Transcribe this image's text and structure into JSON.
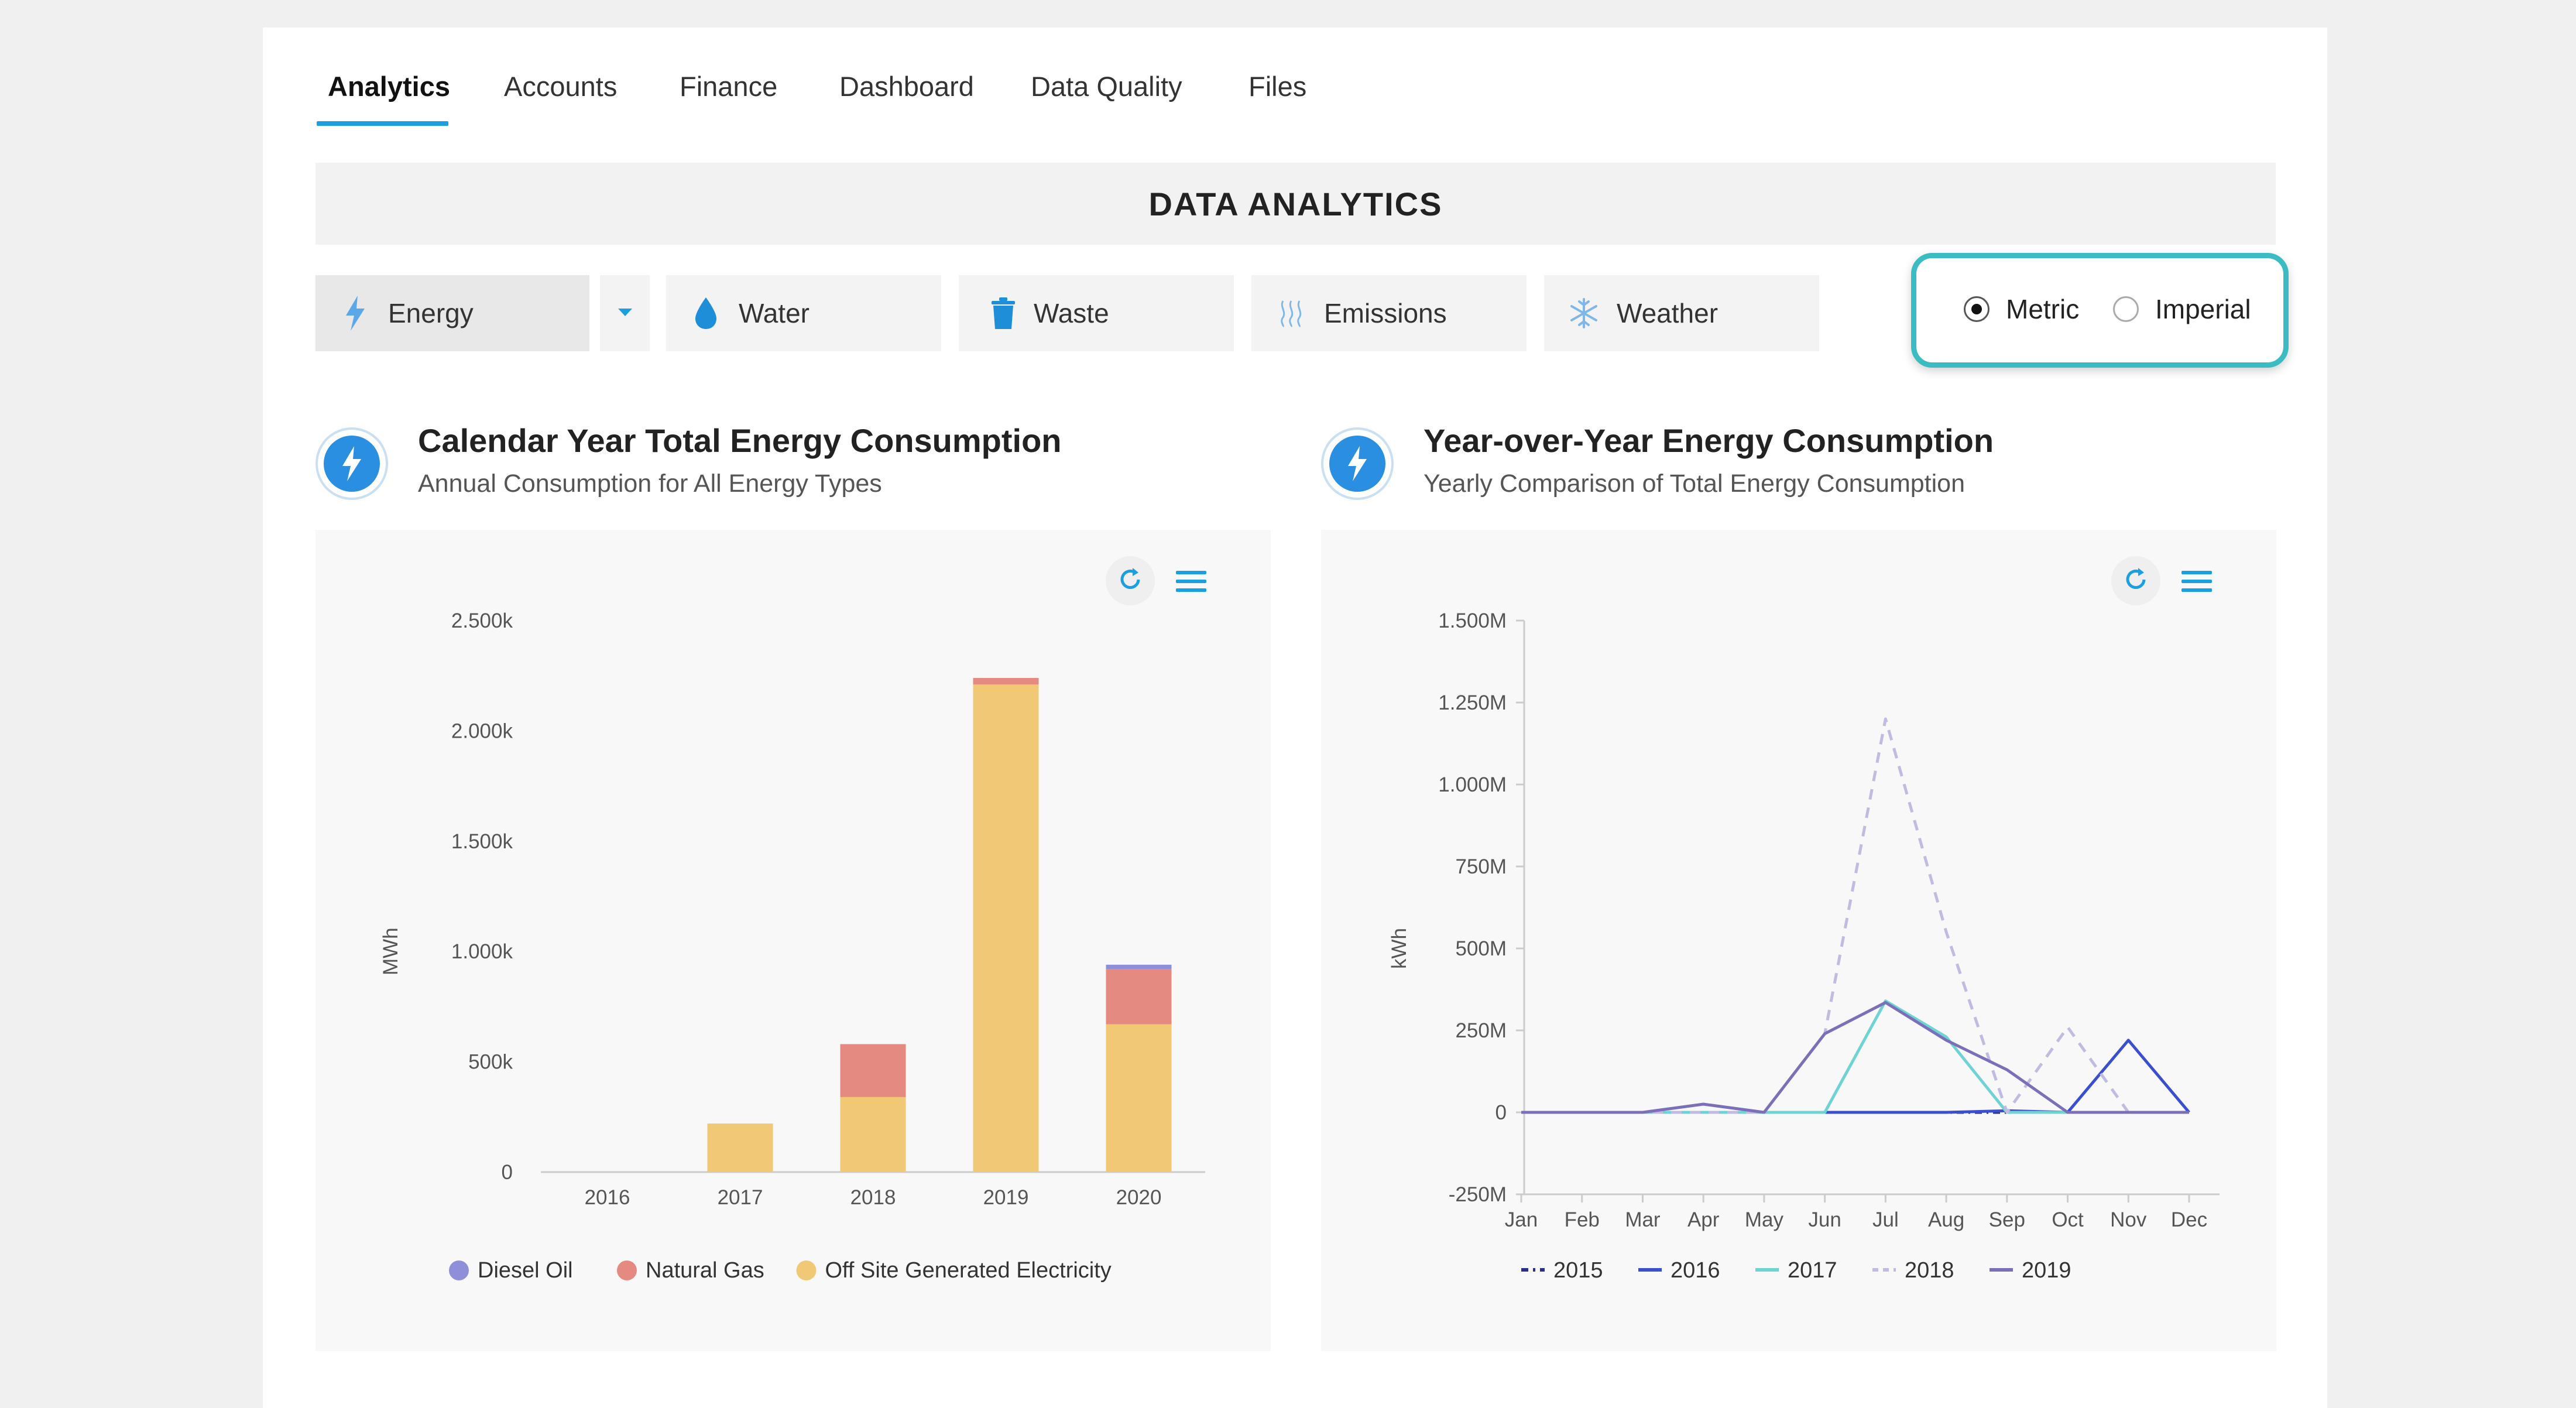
{
  "tabs": [
    {
      "label": "Analytics",
      "active": true
    },
    {
      "label": "Accounts"
    },
    {
      "label": "Finance"
    },
    {
      "label": "Dashboard"
    },
    {
      "label": "Data Quality"
    },
    {
      "label": "Files"
    }
  ],
  "header": {
    "title": "DATA ANALYTICS"
  },
  "categories": [
    {
      "label": "Energy",
      "icon": "lightning-icon",
      "active": true
    },
    {
      "label": "Water",
      "icon": "water-drop-icon"
    },
    {
      "label": "Waste",
      "icon": "trash-icon"
    },
    {
      "label": "Emissions",
      "icon": "emissions-waves-icon"
    },
    {
      "label": "Weather",
      "icon": "snowflake-icon"
    }
  ],
  "units": {
    "selected": "Metric",
    "options": [
      "Metric",
      "Imperial"
    ]
  },
  "colors": {
    "accent": "#1a9fe0",
    "toggle_border": "#3bbcc2",
    "diesel": "#8f8fd9",
    "gas": "#e58a80",
    "electricity": "#f0c876"
  },
  "left_chart": {
    "title": "Calendar Year Total Energy Consumption",
    "subtitle": "Annual Consumption for All Energy Types",
    "icon": "lightning-icon"
  },
  "right_chart": {
    "title": "Year-over-Year Energy Consumption",
    "subtitle": "Yearly Comparison of Total Energy Consumption",
    "icon": "lightning-icon"
  },
  "chart_data": [
    {
      "type": "bar",
      "stacked": true,
      "categories": [
        "2016",
        "2017",
        "2018",
        "2019",
        "2020"
      ],
      "ylabel": "MWh",
      "ylim": [
        0,
        2500
      ],
      "yticks": [
        0,
        500,
        1000,
        1500,
        2000,
        2500
      ],
      "ytick_labels": [
        "0",
        "500k",
        "1.000k",
        "1.500k",
        "2.000k",
        "2.500k"
      ],
      "series": [
        {
          "name": "Off Site Generated Electricity",
          "color": "#f0c876",
          "values": [
            0,
            220,
            340,
            2210,
            670
          ]
        },
        {
          "name": "Natural Gas",
          "color": "#e58a80",
          "values": [
            0,
            0,
            240,
            30,
            250
          ]
        },
        {
          "name": "Diesel Oil",
          "color": "#8f8fd9",
          "values": [
            0,
            0,
            0,
            0,
            20
          ]
        }
      ],
      "legend": [
        "Diesel Oil",
        "Natural Gas",
        "Off Site Generated Electricity"
      ],
      "legend_position": "bottom"
    },
    {
      "type": "line",
      "x": [
        "Jan",
        "Feb",
        "Mar",
        "Apr",
        "May",
        "Jun",
        "Jul",
        "Aug",
        "Sep",
        "Oct",
        "Nov",
        "Dec"
      ],
      "ylabel": "kWh",
      "ylim": [
        -250,
        1500
      ],
      "yticks": [
        -250,
        0,
        250,
        500,
        750,
        1000,
        1250,
        1500
      ],
      "ytick_labels": [
        "-250M",
        "0",
        "250M",
        "500M",
        "750M",
        "1.000M",
        "1.250M",
        "1.500M"
      ],
      "series": [
        {
          "name": "2015",
          "color": "#2a2f8a",
          "dash": "dashdot",
          "values": [
            0,
            0,
            0,
            0,
            0,
            0,
            0,
            0,
            0,
            0,
            0,
            0
          ]
        },
        {
          "name": "2016",
          "color": "#3a4fd0",
          "dash": "solid",
          "values": [
            0,
            0,
            0,
            0,
            0,
            0,
            0,
            0,
            5,
            0,
            220,
            0
          ]
        },
        {
          "name": "2017",
          "color": "#6fd3d3",
          "dash": "solid",
          "values": [
            0,
            0,
            0,
            0,
            0,
            0,
            340,
            230,
            0,
            0,
            0,
            0
          ]
        },
        {
          "name": "2018",
          "color": "#c0bbe0",
          "dash": "dashed",
          "values": [
            0,
            0,
            0,
            0,
            0,
            240,
            1200,
            550,
            0,
            260,
            0,
            0
          ]
        },
        {
          "name": "2019",
          "color": "#7a6fb8",
          "dash": "solid",
          "values": [
            0,
            0,
            0,
            25,
            0,
            240,
            335,
            220,
            130,
            0,
            0,
            0
          ]
        }
      ],
      "legend_position": "bottom"
    }
  ]
}
